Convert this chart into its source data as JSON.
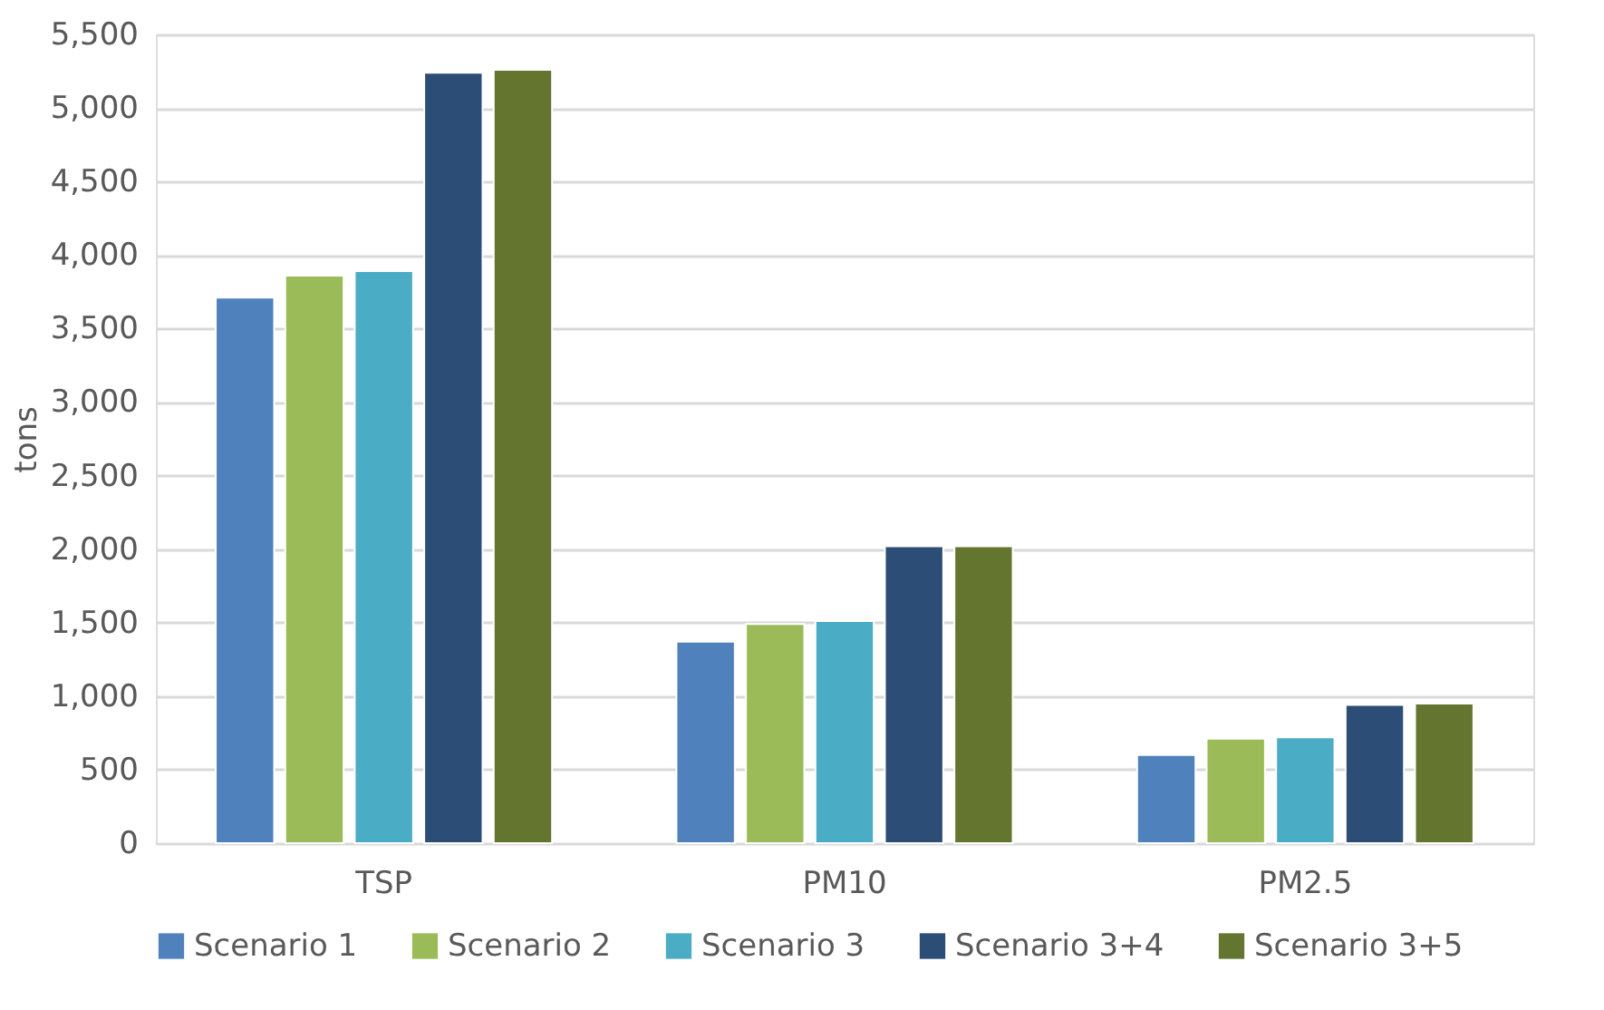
{
  "chart_data": {
    "type": "bar",
    "ylabel": "tons",
    "categories": [
      "TSP",
      "PM10",
      "PM2.5"
    ],
    "series": [
      {
        "name": "Scenario 1",
        "color": "#4f81bd",
        "values": [
          3710,
          1370,
          600
        ]
      },
      {
        "name": "Scenario 2",
        "color": "#9bbb59",
        "values": [
          3860,
          1490,
          710
        ]
      },
      {
        "name": "Scenario 3",
        "color": "#4bacc6",
        "values": [
          3890,
          1510,
          720
        ]
      },
      {
        "name": "Scenario 3+4",
        "color": "#2c4d75",
        "values": [
          5240,
          2020,
          940
        ]
      },
      {
        "name": "Scenario 3+5",
        "color": "#647530",
        "values": [
          5260,
          2020,
          950
        ]
      }
    ],
    "ylim": [
      0,
      5500
    ],
    "yticks": [
      {
        "value": 0,
        "label": "0"
      },
      {
        "value": 500,
        "label": "500"
      },
      {
        "value": 1000,
        "label": "1,000"
      },
      {
        "value": 1500,
        "label": "1,500"
      },
      {
        "value": 2000,
        "label": "2,000"
      },
      {
        "value": 2500,
        "label": "2,500"
      },
      {
        "value": 3000,
        "label": "3,000"
      },
      {
        "value": 3500,
        "label": "3,500"
      },
      {
        "value": 4000,
        "label": "4,000"
      },
      {
        "value": 4500,
        "label": "4,500"
      },
      {
        "value": 5000,
        "label": "5,000"
      },
      {
        "value": 5500,
        "label": "5,500"
      }
    ],
    "grid": "y",
    "legend": "bottom"
  }
}
